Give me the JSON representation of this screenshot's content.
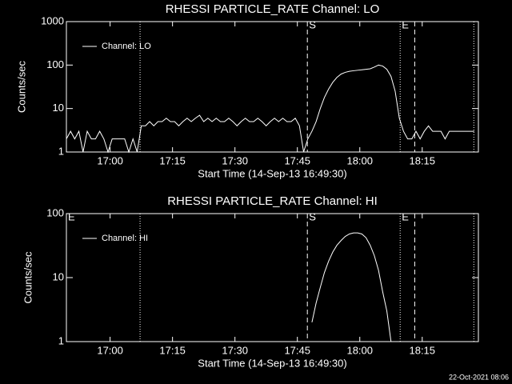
{
  "chart_data": [
    {
      "type": "line",
      "title": "RHESSI PARTICLE_RATE Channel: LO",
      "xlabel": "Start Time (14-Sep-13 16:49:30)",
      "ylabel": "Counts/sec",
      "log_y": true,
      "xlim": [
        0,
        99
      ],
      "ylim": [
        1,
        1000
      ],
      "xticks": [
        {
          "value": 10.5,
          "label": "17:00"
        },
        {
          "value": 25.5,
          "label": "17:15"
        },
        {
          "value": 40.5,
          "label": "17:30"
        },
        {
          "value": 55.5,
          "label": "17:45"
        },
        {
          "value": 70.5,
          "label": "18:00"
        },
        {
          "value": 85.5,
          "label": "18:15"
        }
      ],
      "yticks": [
        1,
        10,
        100,
        1000
      ],
      "legend": "upper left",
      "markers": [
        {
          "x": 17.7,
          "style": "dotted"
        },
        {
          "x": 57.9,
          "style": "dashed",
          "label": "S"
        },
        {
          "x": 80.2,
          "style": "dotted",
          "label": "E"
        },
        {
          "x": 83.7,
          "style": "dashed"
        },
        {
          "x": 97.9,
          "style": "dotted"
        }
      ],
      "x": [
        0,
        1,
        2,
        3,
        4,
        5,
        6,
        7,
        8,
        9,
        10,
        11,
        12,
        13,
        14,
        15,
        16,
        17,
        18,
        19,
        20,
        21,
        22,
        23,
        24,
        25,
        26,
        27,
        28,
        29,
        30,
        31,
        32,
        33,
        34,
        35,
        36,
        37,
        38,
        39,
        40,
        41,
        42,
        43,
        44,
        45,
        46,
        47,
        48,
        49,
        50,
        51,
        52,
        53,
        54,
        55,
        56,
        57,
        58,
        59,
        60,
        61,
        62,
        63,
        64,
        65,
        66,
        67,
        68,
        69,
        70,
        71,
        72,
        73,
        74,
        75,
        76,
        77,
        78,
        79,
        80,
        81,
        82,
        83,
        84,
        85,
        86,
        87,
        88,
        89,
        90,
        91,
        92,
        93,
        94,
        95,
        96,
        97,
        98
      ],
      "series": [
        {
          "name": "Channel: LO",
          "color": "#ffffff",
          "values": [
            2,
            3,
            2,
            3,
            1,
            3,
            2,
            2,
            3,
            2,
            1,
            2,
            2,
            2,
            2,
            1,
            2,
            1,
            4,
            4,
            5,
            4,
            5,
            5,
            6,
            5,
            5,
            4,
            5,
            6,
            5,
            6,
            7,
            5,
            6,
            5,
            6,
            5,
            5,
            6,
            5,
            4,
            5,
            6,
            5,
            5,
            6,
            5,
            4,
            5,
            6,
            5,
            6,
            5,
            5,
            6,
            4,
            1,
            2,
            3,
            5,
            10,
            18,
            28,
            40,
            52,
            62,
            68,
            72,
            74,
            76,
            78,
            80,
            82,
            90,
            100,
            95,
            80,
            55,
            25,
            6,
            3,
            2,
            2,
            3,
            2,
            3,
            4,
            3,
            3,
            3,
            2,
            3,
            3,
            3,
            3,
            3,
            3,
            3
          ]
        }
      ]
    },
    {
      "type": "line",
      "title": "RHESSI PARTICLE_RATE Channel: HI",
      "xlabel": "Start Time (14-Sep-13 16:49:30)",
      "ylabel": "Counts/sec",
      "log_y": true,
      "xlim": [
        0,
        99
      ],
      "ylim": [
        1,
        100
      ],
      "xticks": [
        {
          "value": 10.5,
          "label": "17:00"
        },
        {
          "value": 25.5,
          "label": "17:15"
        },
        {
          "value": 40.5,
          "label": "17:30"
        },
        {
          "value": 55.5,
          "label": "17:45"
        },
        {
          "value": 70.5,
          "label": "18:00"
        },
        {
          "value": 85.5,
          "label": "18:15"
        }
      ],
      "yticks": [
        1,
        10,
        100
      ],
      "legend": "upper left",
      "markers": [
        {
          "x": 0,
          "style": "none",
          "label": "E"
        },
        {
          "x": 17.7,
          "style": "dotted"
        },
        {
          "x": 57.9,
          "style": "dashed",
          "label": "S"
        },
        {
          "x": 80.2,
          "style": "dotted",
          "label": "E"
        },
        {
          "x": 83.7,
          "style": "dashed"
        },
        {
          "x": 97.9,
          "style": "dotted"
        }
      ],
      "x": [
        59,
        60,
        61,
        62,
        63,
        64,
        65,
        66,
        67,
        68,
        69,
        70,
        71,
        72,
        73,
        74,
        75,
        76,
        77,
        78
      ],
      "series": [
        {
          "name": "Channel: HI",
          "color": "#ffffff",
          "values": [
            2,
            4,
            7,
            12,
            18,
            25,
            32,
            38,
            44,
            48,
            50,
            50,
            48,
            42,
            32,
            22,
            13,
            6,
            3,
            1
          ]
        }
      ]
    }
  ],
  "footer": "22-Oct-2021 08:06"
}
